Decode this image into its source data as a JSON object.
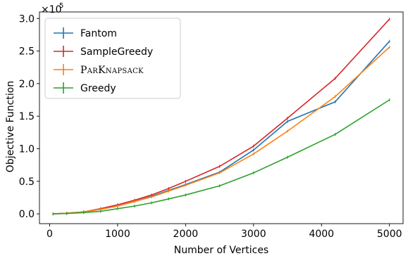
{
  "chart_data": {
    "type": "line",
    "xlabel": "Number of Vertices",
    "ylabel": "Objective Function",
    "y_scale_label": "×10",
    "y_scale_exponent": "5",
    "xlim": [
      -150,
      5200
    ],
    "ylim": [
      -0.15,
      3.1
    ],
    "x_ticks": [
      0,
      1000,
      2000,
      3000,
      4000,
      5000
    ],
    "x_tick_labels": [
      "0",
      "1000",
      "2000",
      "3000",
      "4000",
      "5000"
    ],
    "y_ticks": [
      0.0,
      0.5,
      1.0,
      1.5,
      2.0,
      2.5,
      3.0
    ],
    "y_tick_labels": [
      "0.0",
      "0.5",
      "1.0",
      "1.5",
      "2.0",
      "2.5",
      "3.0"
    ],
    "grid": false,
    "legend_position": "top-left",
    "x": [
      50,
      250,
      500,
      750,
      1000,
      1250,
      1500,
      1750,
      2000,
      2500,
      3000,
      3500,
      4200,
      5000
    ],
    "series": [
      {
        "name": "Fantom",
        "color": "#1f77b4",
        "values": [
          0.0,
          0.01,
          0.03,
          0.07,
          0.12,
          0.19,
          0.27,
          0.36,
          0.45,
          0.64,
          0.98,
          1.42,
          1.72,
          2.65
        ]
      },
      {
        "name": "SampleGreedy",
        "color": "#d62728",
        "values": [
          0.0,
          0.01,
          0.03,
          0.08,
          0.14,
          0.21,
          0.29,
          0.39,
          0.5,
          0.73,
          1.04,
          1.47,
          2.08,
          2.99
        ]
      },
      {
        "name": "ParKnapsack",
        "color": "#ff7f0e",
        "small_caps": true,
        "values": [
          0.0,
          0.01,
          0.03,
          0.07,
          0.12,
          0.19,
          0.26,
          0.35,
          0.44,
          0.63,
          0.92,
          1.27,
          1.8,
          2.56
        ]
      },
      {
        "name": "Greedy",
        "color": "#2ca02c",
        "values": [
          0.0,
          0.005,
          0.02,
          0.04,
          0.08,
          0.12,
          0.17,
          0.23,
          0.29,
          0.43,
          0.63,
          0.87,
          1.22,
          1.75
        ]
      }
    ]
  }
}
